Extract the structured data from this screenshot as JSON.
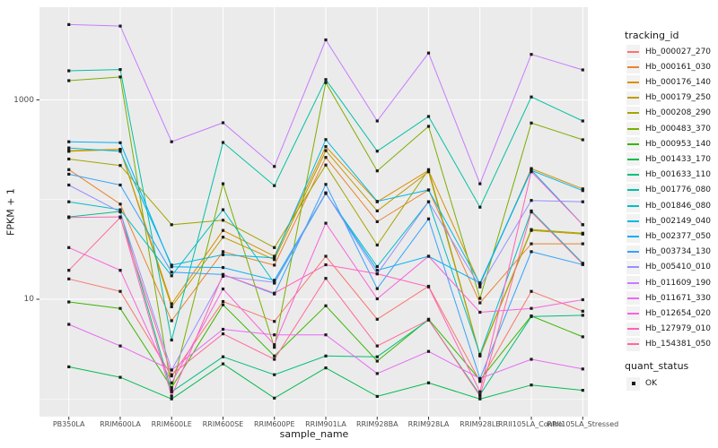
{
  "figure": {
    "y_axis_title": "FPKM + 1",
    "x_axis_title": "sample_name",
    "background": "#FFFFFF",
    "panel_bg": "#EBEBEB",
    "grid_color": "#FFFFFF",
    "tick_color": "#333333",
    "tick_label_color": "#4D4D4D",
    "point_color": "#1A1A1A"
  },
  "chart_data": {
    "type": "line",
    "x_type": "categorical",
    "y_scale": "log10",
    "xlabel": "sample_name",
    "ylabel": "FPKM + 1",
    "y_ticks": [
      10,
      1000
    ],
    "y_minor_gridlines": [
      1,
      100
    ],
    "ylim": [
      0.8,
      9000
    ],
    "grid": "on",
    "legend_position": "right",
    "marker": "black-square",
    "categories": [
      "PB350LA",
      "RRIM600LA",
      "RRIM600LE",
      "RRIM600SE",
      "RRIM600PE",
      "RRIM901LA",
      "RRIM928BA",
      "RRIM928LA",
      "RRIM928LE",
      "RRII105LA_Control",
      "RRII105LA_Stressed"
    ],
    "series": [
      {
        "name": "Hb_000027_270",
        "color": "#F8766D",
        "values": [
          16,
          12,
          1.7,
          9.5,
          6,
          27,
          6.3,
          13.5,
          1.5,
          12,
          7.6
        ]
      },
      {
        "name": "Hb_000161_030",
        "color": "#EA8331",
        "values": [
          200,
          90,
          6.1,
          30,
          22,
          265,
          60,
          125,
          9.2,
          36,
          36
        ]
      },
      {
        "name": "Hb_000176_140",
        "color": "#D89000",
        "values": [
          310,
          320,
          9,
          49,
          27,
          340,
          95,
          196,
          14,
          205,
          128
        ]
      },
      {
        "name": "Hb_000179_250",
        "color": "#C09B00",
        "values": [
          305,
          318,
          8.4,
          42,
          25,
          310,
          77,
          190,
          2.7,
          49,
          45
        ]
      },
      {
        "name": "Hb_000208_290",
        "color": "#A3A500",
        "values": [
          255,
          220,
          56,
          62,
          33,
          222,
          35,
          200,
          2.75,
          50,
          46
        ]
      },
      {
        "name": "Hb_000483_370",
        "color": "#7CAE00",
        "values": [
          1560,
          1700,
          1.25,
          144,
          3.3,
          1490,
          194,
          543,
          10.2,
          586,
          398
        ]
      },
      {
        "name": "Hb_000953_140",
        "color": "#39B600",
        "values": [
          9.4,
          8.1,
          1.3,
          8.8,
          2.7,
          8.6,
          2.4,
          6.3,
          1.55,
          6.8,
          4.2
        ]
      },
      {
        "name": "Hb_001433_170",
        "color": "#00BB4E",
        "values": [
          2.1,
          1.65,
          1.0,
          2.25,
          1.02,
          2.05,
          1.06,
          1.45,
          1.0,
          1.38,
          1.22
        ]
      },
      {
        "name": "Hb_001633_110",
        "color": "#00BF7D",
        "values": [
          67,
          76,
          1.18,
          2.65,
          1.75,
          2.7,
          2.65,
          6.2,
          1.1,
          6.7,
          6.9
        ]
      },
      {
        "name": "Hb_001776_080",
        "color": "#00C1A3",
        "values": [
          1960,
          2015,
          3.9,
          374,
          138,
          1600,
          306,
          682,
          84,
          1070,
          615
        ]
      },
      {
        "name": "Hb_001846_080",
        "color": "#00BFC4",
        "values": [
          95,
          79,
          17.2,
          79,
          14.5,
          115,
          21.3,
          95,
          2.8,
          77,
          23
        ]
      },
      {
        "name": "Hb_002149_040",
        "color": "#00BAE0",
        "values": [
          330,
          305,
          22,
          28,
          26,
          400,
          96,
          125,
          14.3,
          196,
          123
        ]
      },
      {
        "name": "Hb_002377_050",
        "color": "#00B0F6",
        "values": [
          380,
          372,
          21.2,
          20.8,
          15.5,
          116,
          19.5,
          27,
          14.6,
          198,
          56
        ]
      },
      {
        "name": "Hb_003734_130",
        "color": "#35A2FF",
        "values": [
          180,
          140,
          18.7,
          17.7,
          11.3,
          142,
          12.8,
          64,
          1.6,
          30,
          22.3
        ]
      },
      {
        "name": "Hb_005410_010",
        "color": "#9590FF",
        "values": [
          140,
          75,
          1.95,
          17,
          14.8,
          117,
          18,
          95,
          13.3,
          98,
          95
        ]
      },
      {
        "name": "Hb_011609_190",
        "color": "#C77CFF",
        "values": [
          5700,
          5500,
          380,
          590,
          215,
          4000,
          615,
          2950,
          144,
          2860,
          2000
        ]
      },
      {
        "name": "Hb_011671_330",
        "color": "#E76BF3",
        "values": [
          5.6,
          3.4,
          1.95,
          5,
          4.4,
          4.4,
          1.8,
          3,
          1.6,
          2.5,
          2
        ]
      },
      {
        "name": "Hb_012654_020",
        "color": "#FA62DB",
        "values": [
          33,
          19.5,
          1.45,
          12.7,
          3.5,
          58,
          10.1,
          27,
          7.4,
          8.1,
          9.9
        ]
      },
      {
        "name": "Hb_127979_010",
        "color": "#FF62BC",
        "values": [
          66,
          67,
          1.07,
          17.7,
          11.5,
          22.2,
          18,
          13.3,
          1.18,
          190,
          56
        ]
      },
      {
        "name": "Hb_154381_050",
        "color": "#FF6A98",
        "values": [
          19.5,
          66,
          1.75,
          4.5,
          2.5,
          16.2,
          3.4,
          6.2,
          1.07,
          75,
          22.5
        ]
      }
    ]
  },
  "legend": {
    "tracking_title": "tracking_id",
    "quant_title": "quant_status",
    "quant_items": [
      {
        "label": "OK",
        "marker": "black-square"
      }
    ],
    "key_bg": "#F2F2F2"
  }
}
